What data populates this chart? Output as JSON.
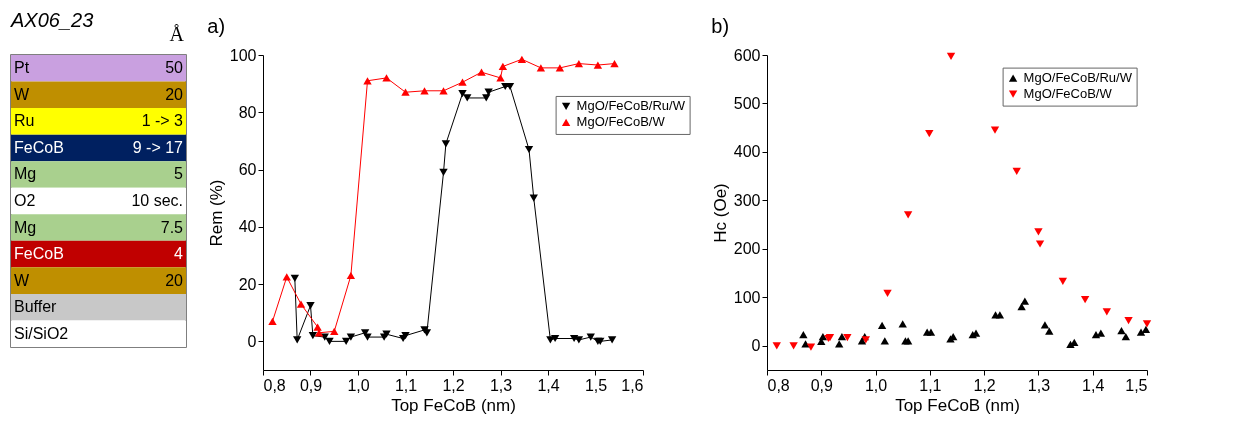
{
  "chart_data": [
    {
      "type": "other",
      "title": "AX06_23",
      "subtitle": "Å",
      "categories": [
        "Pt",
        "W",
        "Ru",
        "FeCoB",
        "Mg",
        "O2",
        "Mg",
        "FeCoB",
        "W",
        "Buffer",
        "Si/SiO2"
      ],
      "value_labels": [
        "50",
        "20",
        "1 -> 3",
        "9 -> 17",
        "5",
        "10 sec.",
        "7.5",
        "4",
        "20",
        null,
        null
      ],
      "colors": [
        "#c9a0e0",
        "#bf8f00",
        "#ffff00",
        "#002060",
        "#a9d08e",
        "#ffffff",
        "#a9d08e",
        "#c00000",
        "#bf8f00",
        "#c8c8c8",
        "#ffffff"
      ]
    },
    {
      "type": "line",
      "title": "a)",
      "xlabel": "Top FeCoB (nm)",
      "ylabel": "Rem (%)",
      "xlim": [
        0.8,
        1.6
      ],
      "ylim": [
        -10,
        100
      ],
      "xticks": [
        {
          "value": 0.8,
          "label": "0,8"
        },
        {
          "value": 0.9,
          "label": "0,9"
        },
        {
          "value": 1.0,
          "label": "1,0"
        },
        {
          "value": 1.1,
          "label": "1,1"
        },
        {
          "value": 1.2,
          "label": "1,2"
        },
        {
          "value": 1.3,
          "label": "1,3"
        },
        {
          "value": 1.4,
          "label": "1,4"
        },
        {
          "value": 1.5,
          "label": "1,5"
        },
        {
          "value": 1.6,
          "label": "1,6"
        }
      ],
      "yticks": [
        0,
        20,
        40,
        60,
        80,
        100
      ],
      "grid": false,
      "legend": "top right",
      "series": [
        {
          "name": "MgO/FeCoB/Ru/W",
          "color": "#000000",
          "marker": "triangle-down",
          "x": [
            0.867,
            0.872,
            0.9,
            0.905,
            0.93,
            0.94,
            0.975,
            0.985,
            1.015,
            1.02,
            1.055,
            1.06,
            1.095,
            1.1,
            1.14,
            1.145,
            1.18,
            1.185,
            1.22,
            1.23,
            1.27,
            1.275,
            1.31,
            1.32,
            1.36,
            1.37,
            1.405,
            1.415,
            1.455,
            1.465,
            1.49,
            1.505,
            1.51,
            1.535
          ],
          "values": [
            22,
            0.5,
            12.5,
            2,
            1.5,
            0,
            0,
            1.5,
            3,
            1.5,
            1.5,
            2.5,
            1,
            2,
            4,
            3,
            59,
            69,
            86.5,
            85,
            85,
            87,
            89,
            89,
            67,
            50,
            0.5,
            1,
            1,
            0.5,
            1.5,
            0,
            0,
            0.5
          ]
        },
        {
          "name": "MgO/FeCoB/W",
          "color": "#ff0000",
          "marker": "triangle",
          "x": [
            0.82,
            0.85,
            0.88,
            0.915,
            0.918,
            0.95,
            0.985,
            1.02,
            1.06,
            1.1,
            1.14,
            1.18,
            1.22,
            1.26,
            1.3,
            1.305,
            1.345,
            1.385,
            1.425,
            1.465,
            1.505,
            1.54
          ],
          "values": [
            7,
            22.5,
            13,
            5,
            3,
            3.5,
            23,
            91,
            92,
            87,
            87.5,
            87.5,
            90.5,
            94,
            92,
            96,
            98.5,
            95.5,
            95.5,
            97,
            96.5,
            97
          ]
        }
      ]
    },
    {
      "type": "scatter",
      "title": "b)",
      "xlabel": "Top FeCoB (nm)",
      "ylabel": "Hc (Oe)",
      "xlim": [
        0.8,
        1.5
      ],
      "ylim": [
        -50,
        600
      ],
      "xticks": [
        {
          "value": 0.8,
          "label": "0,8"
        },
        {
          "value": 0.9,
          "label": "0,9"
        },
        {
          "value": 1.0,
          "label": "1,0"
        },
        {
          "value": 1.1,
          "label": "1,1"
        },
        {
          "value": 1.2,
          "label": "1,2"
        },
        {
          "value": 1.3,
          "label": "1,3"
        },
        {
          "value": 1.4,
          "label": "1,4"
        },
        {
          "value": 1.5,
          "label": "1,5"
        }
      ],
      "yticks": [
        0,
        100,
        200,
        300,
        400,
        500,
        600
      ],
      "grid": false,
      "legend": "top right",
      "series": [
        {
          "name": "MgO/FeCoB/Ru/W",
          "color": "#000000",
          "marker": "triangle",
          "x": [
            0.867,
            0.871,
            0.9,
            0.903,
            0.933,
            0.938,
            0.975,
            0.98,
            1.012,
            1.017,
            1.05,
            1.055,
            1.06,
            1.095,
            1.102,
            1.138,
            1.143,
            1.179,
            1.185,
            1.221,
            1.229,
            1.269,
            1.275,
            1.312,
            1.32,
            1.359,
            1.366,
            1.406,
            1.415,
            1.453,
            1.461,
            1.489,
            1.498
          ],
          "values": [
            23,
            4,
            9,
            19,
            4,
            19,
            10,
            19,
            42,
            10,
            45,
            10,
            10,
            28,
            28,
            14,
            19,
            23,
            26,
            64,
            64,
            81,
            92,
            43,
            30,
            3,
            7,
            23,
            26,
            31,
            19,
            28,
            34
          ]
        },
        {
          "name": "MgO/FeCoB/W",
          "color": "#ff0000",
          "marker": "triangle-down",
          "x": [
            0.818,
            0.849,
            0.881,
            0.913,
            0.916,
            0.948,
            0.982,
            1.022,
            1.06,
            1.099,
            1.139,
            1.22,
            1.26,
            1.3,
            1.303,
            1.345,
            1.386,
            1.426,
            1.466,
            1.5
          ],
          "values": [
            0,
            0,
            -3,
            15,
            17,
            17,
            12,
            108,
            270,
            438,
            597,
            445,
            360,
            235,
            210,
            133,
            95,
            70,
            52,
            45
          ]
        }
      ]
    }
  ]
}
